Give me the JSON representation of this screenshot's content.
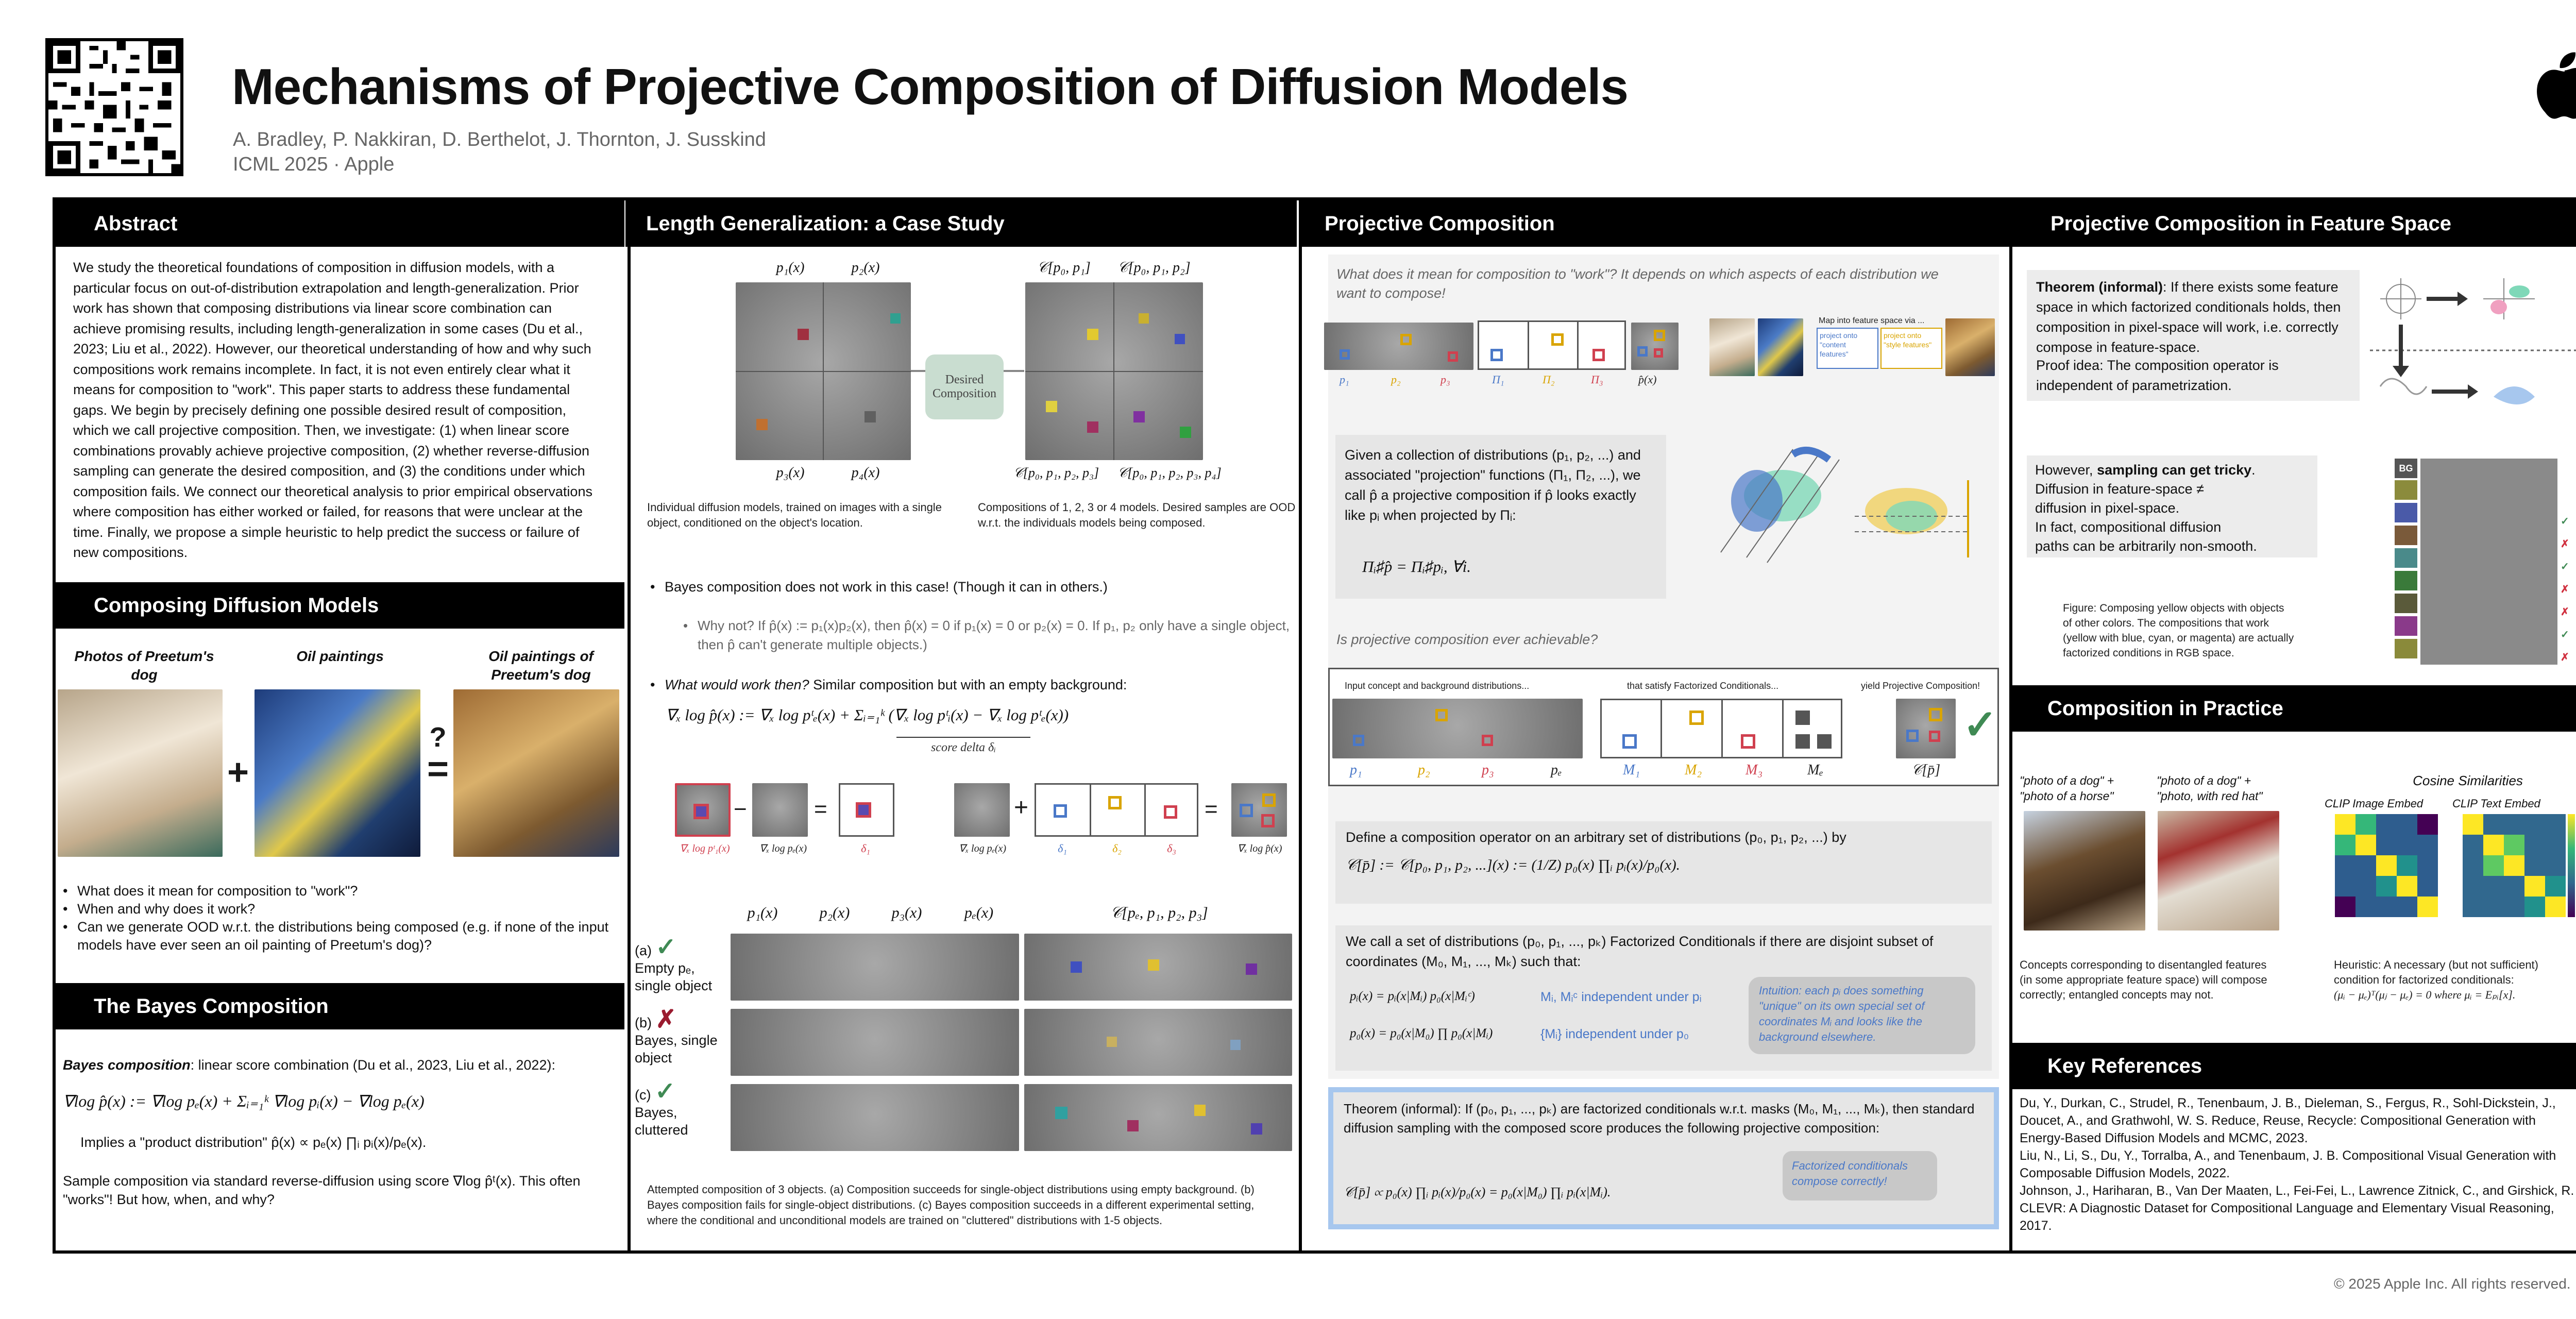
{
  "header": {
    "title": "Mechanisms of Projective Composition of Diffusion Models",
    "authors": "A. Bradley, P. Nakkiran, D. Berthelot, J. Thornton, J. Susskind",
    "venue": "ICML 2025  ·  Apple"
  },
  "abstract": {
    "heading": "Abstract",
    "text": "We study the theoretical foundations of composition in diffusion models, with a particular focus on out-of-distribution extrapolation and length-generalization. Prior work has shown that composing distributions via linear score combination can achieve promising results, including length-generalization in some cases (Du et al., 2023; Liu et al., 2022). However, our theoretical understanding of how and why such compositions work remains incomplete. In fact, it is not even entirely clear what it means for composition to \"work\". This paper starts to address these fundamental gaps. We begin by precisely defining one possible desired result of composition, which we call projective composition. Then, we investigate: (1) when linear score combinations provably achieve projective composition, (2) whether reverse-diffusion sampling can generate the desired composition, and (3) the conditions under which composition fails. We connect our theoretical analysis to prior empirical observations where composition has either worked or failed, for reasons that were unclear at the time. Finally, we propose a simple heuristic to help predict the success or failure of new compositions."
  },
  "composing": {
    "heading": "Composing Diffusion Models",
    "label1": "Photos of Preetum's dog",
    "label2": "Oil paintings",
    "label3": "Oil paintings of Preetum's dog",
    "plus": "+",
    "equals": "=",
    "question": "?",
    "bullets": [
      "What does it mean for composition to \"work\"?",
      "When and why does it work?",
      "Can we generate OOD w.r.t. the distributions being composed (e.g. if none of the input models have ever seen an oil painting of Preetum's dog)?"
    ]
  },
  "bayes": {
    "heading": "The Bayes Composition",
    "intro_bold": "Bayes composition",
    "intro": ": linear score combination (Du et al., 2023, Liu et al., 2022):",
    "formula": "∇log p̂(x) := ∇log pₑ(x) + Σᵢ₌₁ᵏ ∇log pᵢ(x) − ∇log pₑ(x)",
    "implies": "Implies a \"product distribution\" p̂(x) ∝ pₑ(x) ∏ᵢ pᵢ(x)/pₑ(x).",
    "sampling": "Sample composition via standard reverse-diffusion using  score ∇log p̂ᵗ(x). This often \"works\"! But how, when, and why?"
  },
  "length": {
    "heading": "Length Generalization: a Case Study",
    "labels_left": [
      "p₁(x)",
      "p₂(x)",
      "p₃(x)",
      "p₄(x)"
    ],
    "labels_right": [
      "𝒞[p₀, p₁]",
      "𝒞[p₀, p₁, p₂]",
      "𝒞[p₀, p₁, p₂, p₃]",
      "𝒞[p₀, p₁, p₂, p₃, p₄]"
    ],
    "desired": "Desired Composition",
    "cap_left": "Individual diffusion models, trained on images with a single object, conditioned on the object's location.",
    "cap_right": "Compositions of 1, 2, 3 or 4 models. Desired samples are OOD w.r.t. the individuals models being composed.",
    "bullet1": "Bayes composition does not work in this case! (Though it can in others.)",
    "bullet1_sub": "Why not? If p̂(x) := p₁(x)p₂(x), then p̂(x) = 0 if p₁(x) = 0 or p₂(x) = 0. If p₁, p₂ only have a single object, then p̂ can't generate multiple objects.)",
    "bullet2_ital": "What would work then?",
    "bullet2": " Similar composition but with an empty background:",
    "formula": "∇ₓ log p̂(x) := ∇ₓ log pᵗₑ(x) + Σᵢ₌₁ᵏ (∇ₓ log pᵗᵢ(x) − ∇ₓ log pᵗₑ(x))",
    "score_delta": "score delta δᵢ",
    "delta_labels": [
      "∇ₓ log pᵗ₁(x)",
      "∇ₓ log pₑ(x)",
      "δ₁",
      "∇ₓ log pₑ(x)",
      "δ₁",
      "δ₂",
      "δ₃",
      "∇ₓ log p̂(x)"
    ],
    "grid_cols": [
      "p₁(x)",
      "p₂(x)",
      "p₃(x)",
      "pₑ(x)",
      "𝒞[pₑ, p₁, p₂, p₃]"
    ],
    "rows": [
      {
        "tag": "(a)",
        "label": "Empty pₑ, single object",
        "mark": "✓"
      },
      {
        "tag": "(b)",
        "label": "Bayes, single object",
        "mark": "✗"
      },
      {
        "tag": "(c)",
        "label": "Bayes, cluttered",
        "mark": "✓"
      }
    ],
    "caption": "Attempted composition of 3 objects. (a) Composition succeeds for single-object distributions using empty background. (b) Bayes composition fails for single-object distributions. (c) Bayes composition succeeds in a different experimental setting, where the conditional and unconditional models are trained on \"cluttered\" distributions with  1-5 objects."
  },
  "projective": {
    "heading": "Projective Composition",
    "question1": "What does it mean for composition to \"work\"? It depends on which aspects of each distribution we want to compose!",
    "labels_top": [
      "p₁",
      "p₂",
      "p₃",
      "Π₁",
      "Π₂",
      "Π₃",
      "p̂(x)"
    ],
    "feature_map": "Map into feature space via ...",
    "feature_a": "project onto \"content features\"",
    "feature_b": "project onto \"style features\"",
    "def_text": "Given a collection of distributions (p₁, p₂, ...) and associated \"projection\" functions (Π₁, Π₂, ...), we call p̂ a projective composition if p̂ looks exactly like pᵢ when projected by Πᵢ:",
    "def_formula": "Πᵢ♯p̂ = Πᵢ♯pᵢ,   ∀i.",
    "question2": "Is projective composition ever achievable?",
    "strip_labels": [
      "Input concept and background distributions...",
      "that satisfy Factorized Conditionals...",
      "yield Projective Composition!"
    ],
    "strip_sub": [
      "p₁",
      "p₂",
      "p₃",
      "pₑ",
      "M₁",
      "M₂",
      "M₃",
      "Mₑ",
      "𝒞[p̄]"
    ],
    "operator": "Define a composition operator on an arbitrary set of distributions (p₀, p₁, p₂, ...) by",
    "operator_formula": "𝒞[p̄] := 𝒞[p₀, p₁, p₂, ...](x) := (1/Z) p₀(x) ∏ᵢ pᵢ(x)/p₀(x).",
    "factorized": "We call a set of distributions (p₀, p₁, ..., pₖ) Factorized Conditionals if there are disjoint subset of coordinates (M₀, M₁, ..., Mₖ) such that:",
    "fc1": "pᵢ(x) = pᵢ(x|Mᵢ) p₀(x|Mᵢᶜ)",
    "fc2": "p₀(x) = p₀(x|M₀) ∏ p₀(x|Mᵢ)",
    "fc_note1": "Mᵢ, Mᵢᶜ independent under pᵢ",
    "fc_note2": "{Mᵢ} independent under p₀",
    "intuition": "Intuition: each pᵢ does something \"unique\" on its own special set of coordinates Mᵢ and looks like the background elsewhere.",
    "theorem": "Theorem (informal): If (p₀, p₁, ..., pₖ) are factorized conditionals w.r.t. masks (M₀, M₁, ..., Mₖ), then standard diffusion sampling with the composed score produces the following projective composition:",
    "theorem_formula": "𝒞[p̄] ∝ p₀(x) ∏ᵢ pᵢ(x)/p₀(x) = p₀(x|M₀) ∏ᵢ pᵢ(x|Mᵢ).",
    "theorem_note": "Factorized conditionals compose correctly!"
  },
  "feature": {
    "heading": "Projective Composition in Feature Space",
    "theorem_bold": "Theorem (informal)",
    "theorem": ": If there exists some feature space in which factorized conditionals holds, then composition in pixel-space will work, i.e. correctly compose in feature-space.",
    "proof": "Proof idea: The composition operator is independent of parametrization.",
    "tricky_a": "However, ",
    "tricky_bold": "sampling can get tricky",
    "tricky_b": ".",
    "tricky_lines": [
      "Diffusion in feature-space ≠",
      "diffusion in pixel-space.",
      "In fact, compositional diffusion",
      "paths can be arbitrarily non-smooth."
    ],
    "figure_caption": "Figure: Composing yellow objects with objects of other colors. The compositions that work (yellow with blue, cyan, or magenta) are actually factorized conditions in RGB space.",
    "bg_label": "BG",
    "marks": [
      "✓",
      "✗",
      "✓",
      "✗",
      "✗",
      "✓",
      "✗"
    ],
    "swatches": [
      "#d8d8d8",
      "#8b8b3c",
      "#4a5aa8",
      "#7a5a3a",
      "#4a8a8a",
      "#3a7a3a",
      "#8a3a8a",
      "#8a8a3a"
    ]
  },
  "practice": {
    "heading": "Composition in Practice",
    "prompt1": "\"photo of a dog\" + \"photo of a horse\"",
    "prompt2": "\"photo of a dog\" + \"photo, with red hat\"",
    "cap_left": "Concepts corresponding to disentangled features (in some appropriate feature space) will compose correctly; entangled concepts may not.",
    "cosine_title": "Cosine Similarities",
    "clip_image": "CLIP Image Embed",
    "clip_text": "CLIP Text Embed",
    "cap_right": "Heuristic: A necessary (but not sufficient) condition for factorized conditionals:",
    "cap_right_formula": "(μᵢ − μₑ)ᵀ(μⱼ − μₑ) = 0 where μᵢ = Eₚᵢ[x]."
  },
  "references": {
    "heading": "Key References",
    "items": [
      "Du, Y., Durkan, C., Strudel, R., Tenenbaum, J. B., Dieleman, S., Fergus, R., Sohl-Dickstein, J., Doucet, A., and Grathwohl, W. S. Reduce, Reuse, Recycle: Compositional Generation with Energy-Based Diffusion Models and MCMC, 2023.",
      "Liu, N., Li, S., Du, Y., Torralba, A., and Tenenbaum, J. B. Compositional Visual Generation with Composable Diffusion Models, 2022.",
      "Johnson, J., Hariharan, B., Van Der Maaten, L., Fei-Fei, L., Lawrence Zitnick, C., and Girshick, R. CLEVR: A Diagnostic Dataset for Compositional Language and Elementary Visual Reasoning, 2017."
    ]
  },
  "footer": {
    "copyright": "© 2025 Apple Inc. All rights reserved."
  }
}
